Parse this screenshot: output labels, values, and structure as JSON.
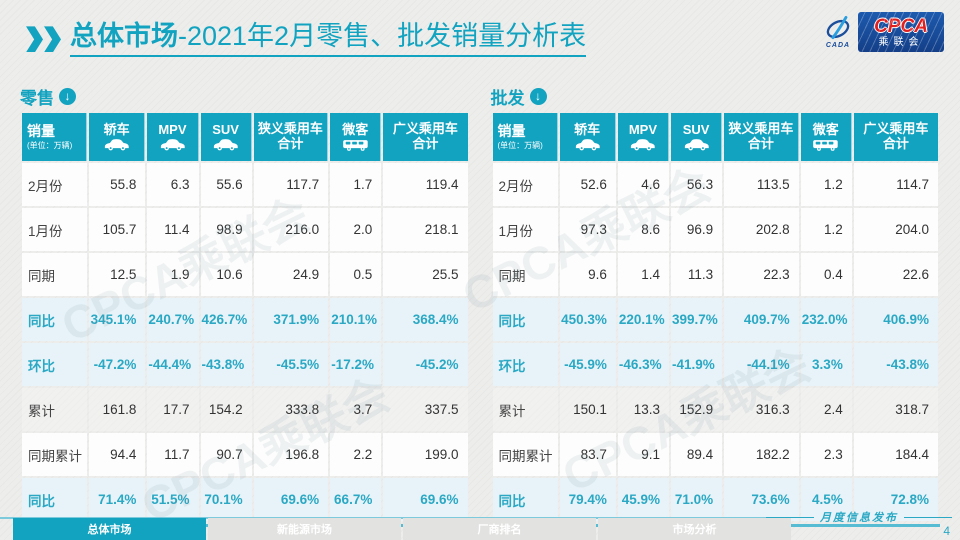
{
  "header": {
    "title_bold": "总体市场",
    "title_rest": "-2021年2月零售、批发销量分析表",
    "logo": {
      "swoosh_label": "CADA",
      "cpca": "CPCA",
      "sub": "乘联会"
    }
  },
  "column_meta": {
    "icons": [
      "car-icon",
      "car-icon",
      "car-icon",
      null,
      "van-icon",
      null
    ]
  },
  "chart_data": [
    {
      "type": "table",
      "title": "零售",
      "first_column_header": "销量",
      "unit_note": "(单位：万辆)",
      "columns": [
        "轿车",
        "MPV",
        "SUV",
        "狭义乘用车合计",
        "微客",
        "广义乘用车合计"
      ],
      "rows": [
        {
          "label": "2月份",
          "style": "plain",
          "values": [
            "55.8",
            "6.3",
            "55.6",
            "117.7",
            "1.7",
            "119.4"
          ]
        },
        {
          "label": "1月份",
          "style": "plain",
          "values": [
            "105.7",
            "11.4",
            "98.9",
            "216.0",
            "2.0",
            "218.1"
          ]
        },
        {
          "label": "同期",
          "style": "plain",
          "values": [
            "12.5",
            "1.9",
            "10.6",
            "24.9",
            "0.5",
            "25.5"
          ]
        },
        {
          "label": "同比",
          "style": "pct",
          "values": [
            "345.1%",
            "240.7%",
            "426.7%",
            "371.9%",
            "210.1%",
            "368.4%"
          ]
        },
        {
          "label": "环比",
          "style": "pct",
          "values": [
            "-47.2%",
            "-44.4%",
            "-43.8%",
            "-45.5%",
            "-17.2%",
            "-45.2%"
          ]
        },
        {
          "label": "累计",
          "style": "gray",
          "values": [
            "161.8",
            "17.7",
            "154.2",
            "333.8",
            "3.7",
            "337.5"
          ]
        },
        {
          "label": "同期累计",
          "style": "plain",
          "values": [
            "94.4",
            "11.7",
            "90.7",
            "196.8",
            "2.2",
            "199.0"
          ]
        },
        {
          "label": "同比",
          "style": "pct",
          "values": [
            "71.4%",
            "51.5%",
            "70.1%",
            "69.6%",
            "66.7%",
            "69.6%"
          ]
        }
      ]
    },
    {
      "type": "table",
      "title": "批发",
      "first_column_header": "销量",
      "unit_note": "(单位：万辆)",
      "columns": [
        "轿车",
        "MPV",
        "SUV",
        "狭义乘用车合计",
        "微客",
        "广义乘用车合计"
      ],
      "rows": [
        {
          "label": "2月份",
          "style": "plain",
          "values": [
            "52.6",
            "4.6",
            "56.3",
            "113.5",
            "1.2",
            "114.7"
          ]
        },
        {
          "label": "1月份",
          "style": "plain",
          "values": [
            "97.3",
            "8.6",
            "96.9",
            "202.8",
            "1.2",
            "204.0"
          ]
        },
        {
          "label": "同期",
          "style": "plain",
          "values": [
            "9.6",
            "1.4",
            "11.3",
            "22.3",
            "0.4",
            "22.6"
          ]
        },
        {
          "label": "同比",
          "style": "pct",
          "values": [
            "450.3%",
            "220.1%",
            "399.7%",
            "409.7%",
            "232.0%",
            "406.9%"
          ]
        },
        {
          "label": "环比",
          "style": "pct",
          "values": [
            "-45.9%",
            "-46.3%",
            "-41.9%",
            "-44.1%",
            "3.3%",
            "-43.8%"
          ]
        },
        {
          "label": "累计",
          "style": "gray",
          "values": [
            "150.1",
            "13.3",
            "152.9",
            "316.3",
            "2.4",
            "318.7"
          ]
        },
        {
          "label": "同期累计",
          "style": "plain",
          "values": [
            "83.7",
            "9.1",
            "89.4",
            "182.2",
            "2.3",
            "184.4"
          ]
        },
        {
          "label": "同比",
          "style": "pct",
          "values": [
            "79.4%",
            "45.9%",
            "71.0%",
            "73.6%",
            "4.5%",
            "72.8%"
          ]
        }
      ]
    }
  ],
  "watermark": "CPCA乘联会",
  "footer": {
    "tabs": [
      {
        "label": "总体市场",
        "active": true
      },
      {
        "label": "新能源市场",
        "active": false
      },
      {
        "label": "厂商排名",
        "active": false
      },
      {
        "label": "市场分析",
        "active": false
      }
    ],
    "release_note": "月度信息发布",
    "page_number": "4"
  },
  "colors": {
    "accent": "#12a3c0",
    "pct_text": "#2aa8c4",
    "pct_row_bg": "#e7f3f8",
    "logo_blue": "#1b4e9b",
    "logo_red": "#e01f1f"
  }
}
